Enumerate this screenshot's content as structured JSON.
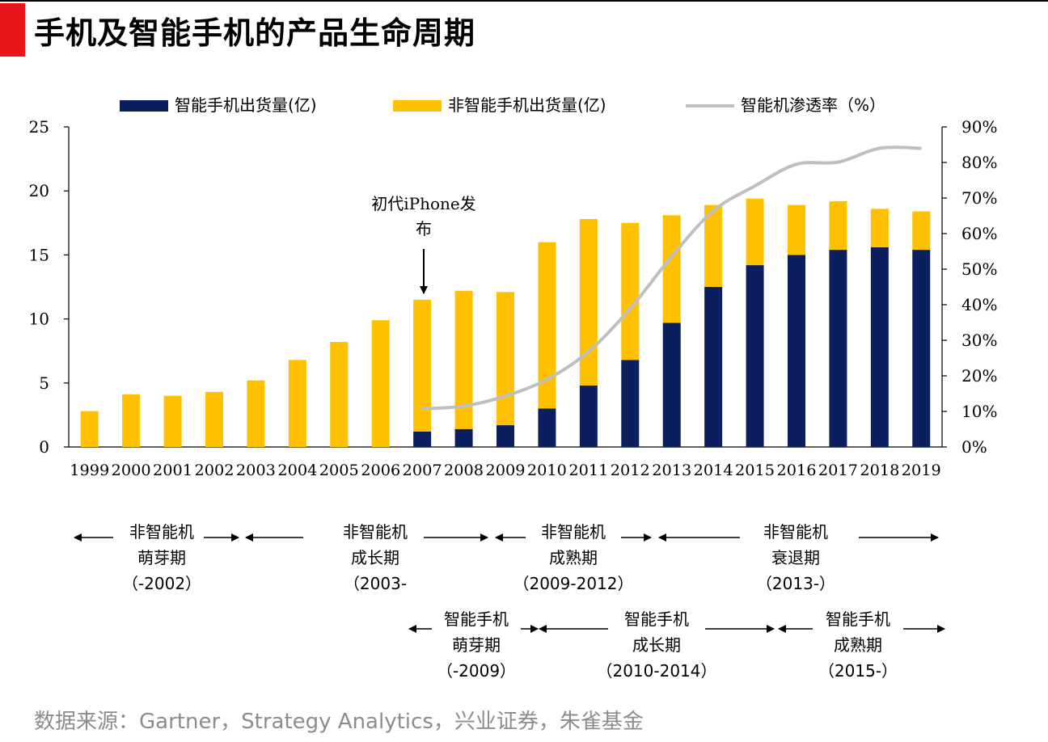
{
  "page": {
    "title": "手机及智能手机的产品生命周期",
    "source": "数据来源：Gartner，Strategy Analytics，兴业证券，朱雀基金"
  },
  "colors": {
    "smart": "#0b1f5e",
    "nonsmart": "#ffc000",
    "penetration": "#bfbfbf"
  },
  "chart_data": {
    "type": "bar",
    "stacked": true,
    "title": "",
    "categories": [
      "1999",
      "2000",
      "2001",
      "2002",
      "2003",
      "2004",
      "2005",
      "2006",
      "2007",
      "2008",
      "2009",
      "2010",
      "2011",
      "2012",
      "2013",
      "2014",
      "2015",
      "2016",
      "2017",
      "2018",
      "2019"
    ],
    "series": [
      {
        "name": "智能手机出货量(亿)",
        "axis": "left",
        "kind": "bar",
        "values": [
          0,
          0,
          0,
          0,
          0,
          0,
          0,
          0,
          1.2,
          1.4,
          1.7,
          3.0,
          4.8,
          6.8,
          9.7,
          12.5,
          14.2,
          15.0,
          15.4,
          15.6,
          15.4
        ]
      },
      {
        "name": "非智能手机出货量(亿)",
        "axis": "left",
        "kind": "bar",
        "values": [
          2.8,
          4.1,
          4.0,
          4.3,
          5.2,
          6.8,
          8.2,
          9.9,
          10.3,
          10.8,
          10.4,
          13.0,
          13.0,
          10.7,
          8.4,
          6.4,
          5.2,
          3.9,
          3.8,
          3.0,
          3.0
        ]
      },
      {
        "name": "智能机渗透率（%）",
        "axis": "right",
        "kind": "line",
        "values": [
          null,
          null,
          null,
          null,
          null,
          null,
          null,
          null,
          10.7,
          11.5,
          14.3,
          19.0,
          26.8,
          38.9,
          53.6,
          66.4,
          73.4,
          79.5,
          80.1,
          84.0,
          84.0
        ]
      }
    ],
    "left_axis": {
      "min": 0,
      "max": 25,
      "ticks": [
        "0",
        "5",
        "10",
        "15",
        "20",
        "25"
      ]
    },
    "right_axis": {
      "min": 0,
      "max": 90,
      "ticks": [
        "0%",
        "10%",
        "20%",
        "30%",
        "40%",
        "50%",
        "60%",
        "70%",
        "80%",
        "90%"
      ]
    },
    "legend": [
      "智能手机出货量(亿)",
      "非智能手机出货量(亿)",
      "智能机渗透率（%）"
    ],
    "annotation": {
      "line1": "初代iPhone发",
      "line2": "布",
      "category": "2007"
    }
  },
  "phases": {
    "nonsmart": [
      {
        "l1": "非智能机",
        "l2": "萌芽期",
        "l3": "（-2002）"
      },
      {
        "l1": "非智能机",
        "l2": "成长期",
        "l3": "（2003-"
      },
      {
        "l1": "非智能机",
        "l2": "成熟期",
        "l3": "（2009-2012）"
      },
      {
        "l1": "非智能机",
        "l2": "衰退期",
        "l3": "（2013-）"
      }
    ],
    "smart": [
      {
        "l1": "智能手机",
        "l2": "萌芽期",
        "l3": "（-2009）"
      },
      {
        "l1": "智能手机",
        "l2": "成长期",
        "l3": "（2010-2014）"
      },
      {
        "l1": "智能手机",
        "l2": "成熟期",
        "l3": "（2015-）"
      }
    ]
  }
}
